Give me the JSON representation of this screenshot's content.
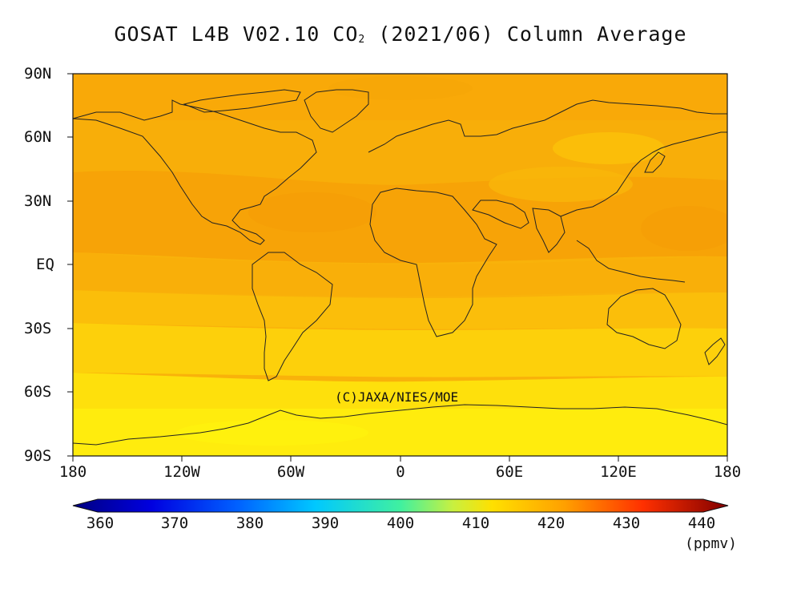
{
  "title": {
    "prefix": "GOSAT L4B V02.10 CO",
    "subscript": "2",
    "suffix": " (2021/06) Column Average"
  },
  "lat_ticks": [
    "90N",
    "60N",
    "30N",
    "EQ",
    "30S",
    "60S",
    "90S"
  ],
  "lon_ticks": [
    "180",
    "120W",
    "60W",
    "0",
    "60E",
    "120E",
    "180"
  ],
  "credit": "(C)JAXA/NIES/MOE",
  "colorbar": {
    "ticks": [
      "360",
      "370",
      "380",
      "390",
      "400",
      "410",
      "420",
      "430",
      "440"
    ],
    "units": "(ppmv)",
    "range": [
      360,
      440
    ],
    "colors": [
      "#000080",
      "#0000d8",
      "#0050ff",
      "#00a8ff",
      "#00e8e0",
      "#60f090",
      "#d8f030",
      "#ffe000",
      "#ffa000",
      "#ff5000",
      "#e00000",
      "#800000"
    ]
  },
  "map_colors": {
    "band_420": "#f7a308",
    "band_418": "#f8ad09",
    "band_416": "#fab70a",
    "band_414": "#fcc80a",
    "band_412": "#fed70b",
    "band_410": "#ffe40c",
    "band_409": "#fff00d"
  }
}
